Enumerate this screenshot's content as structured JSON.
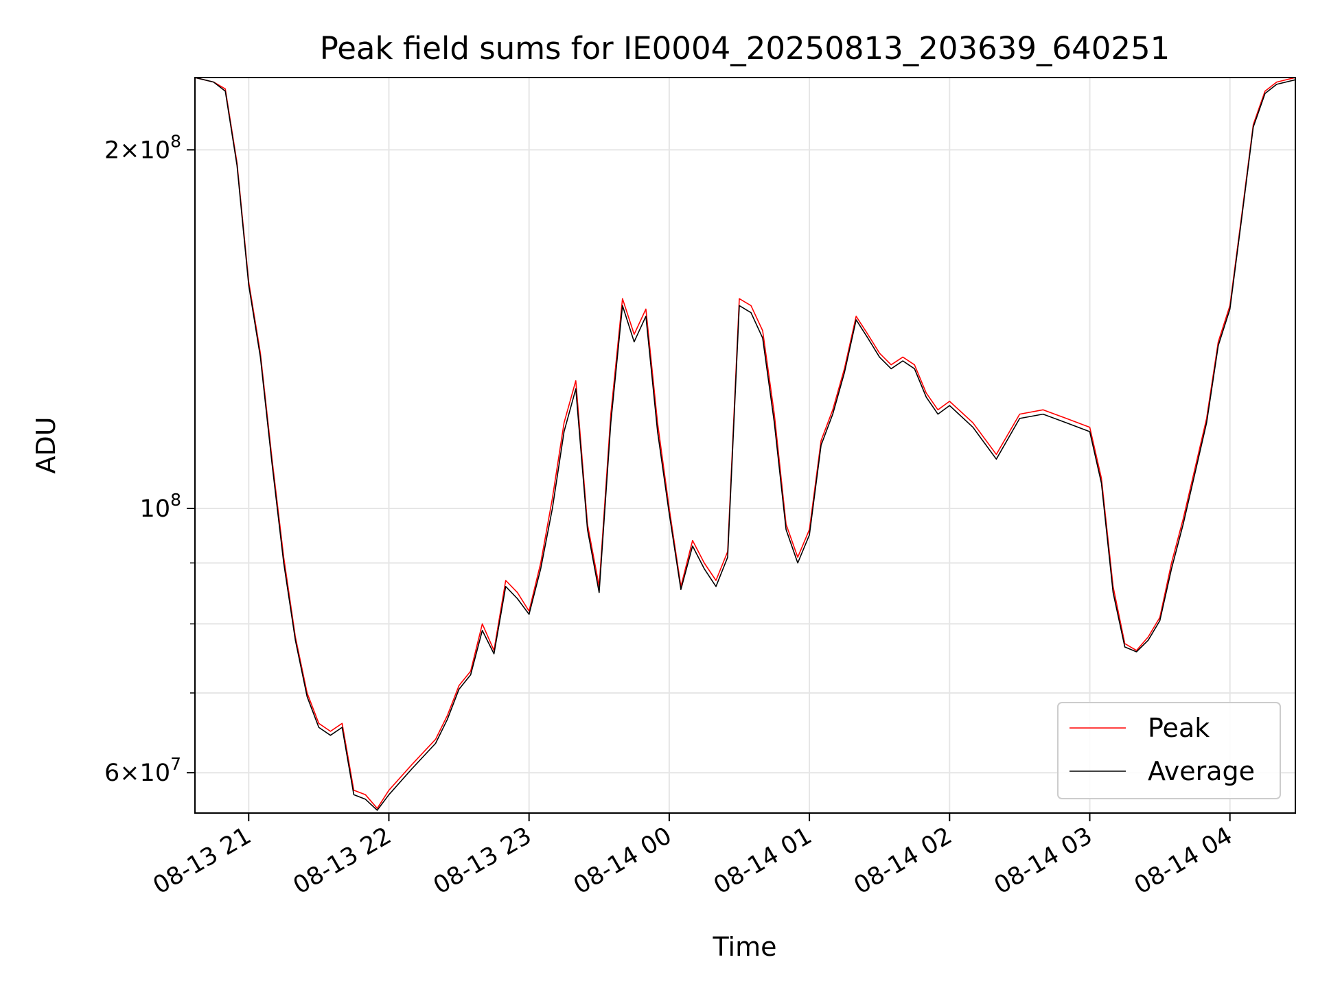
{
  "chart_data": {
    "type": "line",
    "title": "Peak field sums for IE0004_20250813_203639_640251",
    "xlabel": "Time",
    "ylabel": "ADU",
    "yscale": "log",
    "ylim": [
      55500000,
      230000000
    ],
    "xlim": [
      "2025-08-13T20:37",
      "2025-08-14T04:28"
    ],
    "grid": true,
    "legend_position": "bottom-right",
    "x_ticks": [
      {
        "value": "2025-08-13T21:00",
        "label": "08-13 21"
      },
      {
        "value": "2025-08-13T22:00",
        "label": "08-13 22"
      },
      {
        "value": "2025-08-13T23:00",
        "label": "08-13 23"
      },
      {
        "value": "2025-08-14T00:00",
        "label": "08-14 00"
      },
      {
        "value": "2025-08-14T01:00",
        "label": "08-14 01"
      },
      {
        "value": "2025-08-14T02:00",
        "label": "08-14 02"
      },
      {
        "value": "2025-08-14T03:00",
        "label": "08-14 03"
      },
      {
        "value": "2025-08-14T04:00",
        "label": "08-14 04"
      }
    ],
    "y_major_ticks": [
      {
        "value": 60000000,
        "mantissa": "6",
        "base": "10",
        "exp": "7"
      },
      {
        "value": 100000000,
        "mantissa": "",
        "base": "10",
        "exp": "8"
      },
      {
        "value": 200000000,
        "mantissa": "2",
        "base": "10",
        "exp": "8"
      }
    ],
    "y_minor_gridlines": [
      70000000,
      80000000,
      90000000
    ],
    "series": [
      {
        "name": "Peak",
        "color": "#ff0000",
        "x": [
          "2025-08-13T20:37",
          "2025-08-13T20:45",
          "2025-08-13T20:50",
          "2025-08-13T20:55",
          "2025-08-13T21:00",
          "2025-08-13T21:05",
          "2025-08-13T21:10",
          "2025-08-13T21:15",
          "2025-08-13T21:20",
          "2025-08-13T21:25",
          "2025-08-13T21:30",
          "2025-08-13T21:35",
          "2025-08-13T21:40",
          "2025-08-13T21:45",
          "2025-08-13T21:50",
          "2025-08-13T21:55",
          "2025-08-13T22:00",
          "2025-08-13T22:10",
          "2025-08-13T22:20",
          "2025-08-13T22:25",
          "2025-08-13T22:30",
          "2025-08-13T22:35",
          "2025-08-13T22:40",
          "2025-08-13T22:45",
          "2025-08-13T22:50",
          "2025-08-13T22:55",
          "2025-08-13T23:00",
          "2025-08-13T23:05",
          "2025-08-13T23:10",
          "2025-08-13T23:15",
          "2025-08-13T23:20",
          "2025-08-13T23:25",
          "2025-08-13T23:30",
          "2025-08-13T23:35",
          "2025-08-13T23:40",
          "2025-08-13T23:45",
          "2025-08-13T23:50",
          "2025-08-13T23:55",
          "2025-08-14T00:00",
          "2025-08-14T00:05",
          "2025-08-14T00:10",
          "2025-08-14T00:15",
          "2025-08-14T00:20",
          "2025-08-14T00:25",
          "2025-08-14T00:30",
          "2025-08-14T00:35",
          "2025-08-14T00:40",
          "2025-08-14T00:45",
          "2025-08-14T00:50",
          "2025-08-14T00:55",
          "2025-08-14T01:00",
          "2025-08-14T01:05",
          "2025-08-14T01:10",
          "2025-08-14T01:15",
          "2025-08-14T01:20",
          "2025-08-14T01:25",
          "2025-08-14T01:30",
          "2025-08-14T01:35",
          "2025-08-14T01:40",
          "2025-08-14T01:45",
          "2025-08-14T01:50",
          "2025-08-14T01:55",
          "2025-08-14T02:00",
          "2025-08-14T02:10",
          "2025-08-14T02:20",
          "2025-08-14T02:30",
          "2025-08-14T02:40",
          "2025-08-14T02:50",
          "2025-08-14T03:00",
          "2025-08-14T03:05",
          "2025-08-14T03:10",
          "2025-08-14T03:15",
          "2025-08-14T03:20",
          "2025-08-14T03:25",
          "2025-08-14T03:30",
          "2025-08-14T03:35",
          "2025-08-14T03:40",
          "2025-08-14T03:45",
          "2025-08-14T03:50",
          "2025-08-14T03:55",
          "2025-08-14T04:00",
          "2025-08-14T04:05",
          "2025-08-14T04:10",
          "2025-08-14T04:15",
          "2025-08-14T04:20",
          "2025-08-14T04:28"
        ],
        "y": [
          230000000,
          228000000,
          225000000,
          195000000,
          155000000,
          135000000,
          110000000,
          91000000,
          78000000,
          70000000,
          66000000,
          65000000,
          66000000,
          58000000,
          57500000,
          56000000,
          58000000,
          61000000,
          64000000,
          67000000,
          71000000,
          73000000,
          80000000,
          76000000,
          87000000,
          85000000,
          82000000,
          90000000,
          102000000,
          118000000,
          128000000,
          97000000,
          86000000,
          120000000,
          150000000,
          140000000,
          147000000,
          118000000,
          100000000,
          86000000,
          94000000,
          90000000,
          87000000,
          92000000,
          150000000,
          148000000,
          141000000,
          120000000,
          97000000,
          91000000,
          96000000,
          114000000,
          121000000,
          131000000,
          145000000,
          140000000,
          135000000,
          132000000,
          134000000,
          132000000,
          125000000,
          121000000,
          123000000,
          118000000,
          111000000,
          120000000,
          121000000,
          119000000,
          117000000,
          106000000,
          86000000,
          77000000,
          76000000,
          78000000,
          81000000,
          90000000,
          98000000,
          108000000,
          119000000,
          138000000,
          148000000,
          176000000,
          210000000,
          224000000,
          228000000,
          230000000
        ]
      },
      {
        "name": "Average",
        "color": "#000000",
        "x": [
          "2025-08-13T20:37",
          "2025-08-13T20:45",
          "2025-08-13T20:50",
          "2025-08-13T20:55",
          "2025-08-13T21:00",
          "2025-08-13T21:05",
          "2025-08-13T21:10",
          "2025-08-13T21:15",
          "2025-08-13T21:20",
          "2025-08-13T21:25",
          "2025-08-13T21:30",
          "2025-08-13T21:35",
          "2025-08-13T21:40",
          "2025-08-13T21:45",
          "2025-08-13T21:50",
          "2025-08-13T21:55",
          "2025-08-13T22:00",
          "2025-08-13T22:10",
          "2025-08-13T22:20",
          "2025-08-13T22:25",
          "2025-08-13T22:30",
          "2025-08-13T22:35",
          "2025-08-13T22:40",
          "2025-08-13T22:45",
          "2025-08-13T22:50",
          "2025-08-13T22:55",
          "2025-08-13T23:00",
          "2025-08-13T23:05",
          "2025-08-13T23:10",
          "2025-08-13T23:15",
          "2025-08-13T23:20",
          "2025-08-13T23:25",
          "2025-08-13T23:30",
          "2025-08-13T23:35",
          "2025-08-13T23:40",
          "2025-08-13T23:45",
          "2025-08-13T23:50",
          "2025-08-13T23:55",
          "2025-08-14T00:00",
          "2025-08-14T00:05",
          "2025-08-14T00:10",
          "2025-08-14T00:15",
          "2025-08-14T00:20",
          "2025-08-14T00:25",
          "2025-08-14T00:30",
          "2025-08-14T00:35",
          "2025-08-14T00:40",
          "2025-08-14T00:45",
          "2025-08-14T00:50",
          "2025-08-14T00:55",
          "2025-08-14T01:00",
          "2025-08-14T01:05",
          "2025-08-14T01:10",
          "2025-08-14T01:15",
          "2025-08-14T01:20",
          "2025-08-14T01:25",
          "2025-08-14T01:30",
          "2025-08-14T01:35",
          "2025-08-14T01:40",
          "2025-08-14T01:45",
          "2025-08-14T01:50",
          "2025-08-14T01:55",
          "2025-08-14T02:00",
          "2025-08-14T02:10",
          "2025-08-14T02:20",
          "2025-08-14T02:30",
          "2025-08-14T02:40",
          "2025-08-14T02:50",
          "2025-08-14T03:00",
          "2025-08-14T03:05",
          "2025-08-14T03:10",
          "2025-08-14T03:15",
          "2025-08-14T03:20",
          "2025-08-14T03:25",
          "2025-08-14T03:30",
          "2025-08-14T03:35",
          "2025-08-14T03:40",
          "2025-08-14T03:45",
          "2025-08-14T03:50",
          "2025-08-14T03:55",
          "2025-08-14T04:00",
          "2025-08-14T04:05",
          "2025-08-14T04:10",
          "2025-08-14T04:15",
          "2025-08-14T04:20",
          "2025-08-14T04:28"
        ],
        "y": [
          230000000,
          228000000,
          224000000,
          194000000,
          154000000,
          134000000,
          109000000,
          90000000,
          77500000,
          69500000,
          65500000,
          64500000,
          65500000,
          57500000,
          57000000,
          55800000,
          57500000,
          60500000,
          63500000,
          66500000,
          70500000,
          72500000,
          79000000,
          75500000,
          86000000,
          84000000,
          81500000,
          89000000,
          100000000,
          116000000,
          126000000,
          96000000,
          85000000,
          118000000,
          148000000,
          138000000,
          145000000,
          116000000,
          99000000,
          85500000,
          93000000,
          89000000,
          86000000,
          91000000,
          148000000,
          146000000,
          139000000,
          118000000,
          96000000,
          90000000,
          95000000,
          113000000,
          120000000,
          130000000,
          144000000,
          139000000,
          134000000,
          131000000,
          133000000,
          131000000,
          124000000,
          120000000,
          122000000,
          117000000,
          110000000,
          119000000,
          120000000,
          118000000,
          116000000,
          105000000,
          85000000,
          76500000,
          75800000,
          77500000,
          80500000,
          89000000,
          97000000,
          107000000,
          118000000,
          137000000,
          147000000,
          175000000,
          209000000,
          223000000,
          227000000,
          229000000
        ]
      }
    ]
  }
}
